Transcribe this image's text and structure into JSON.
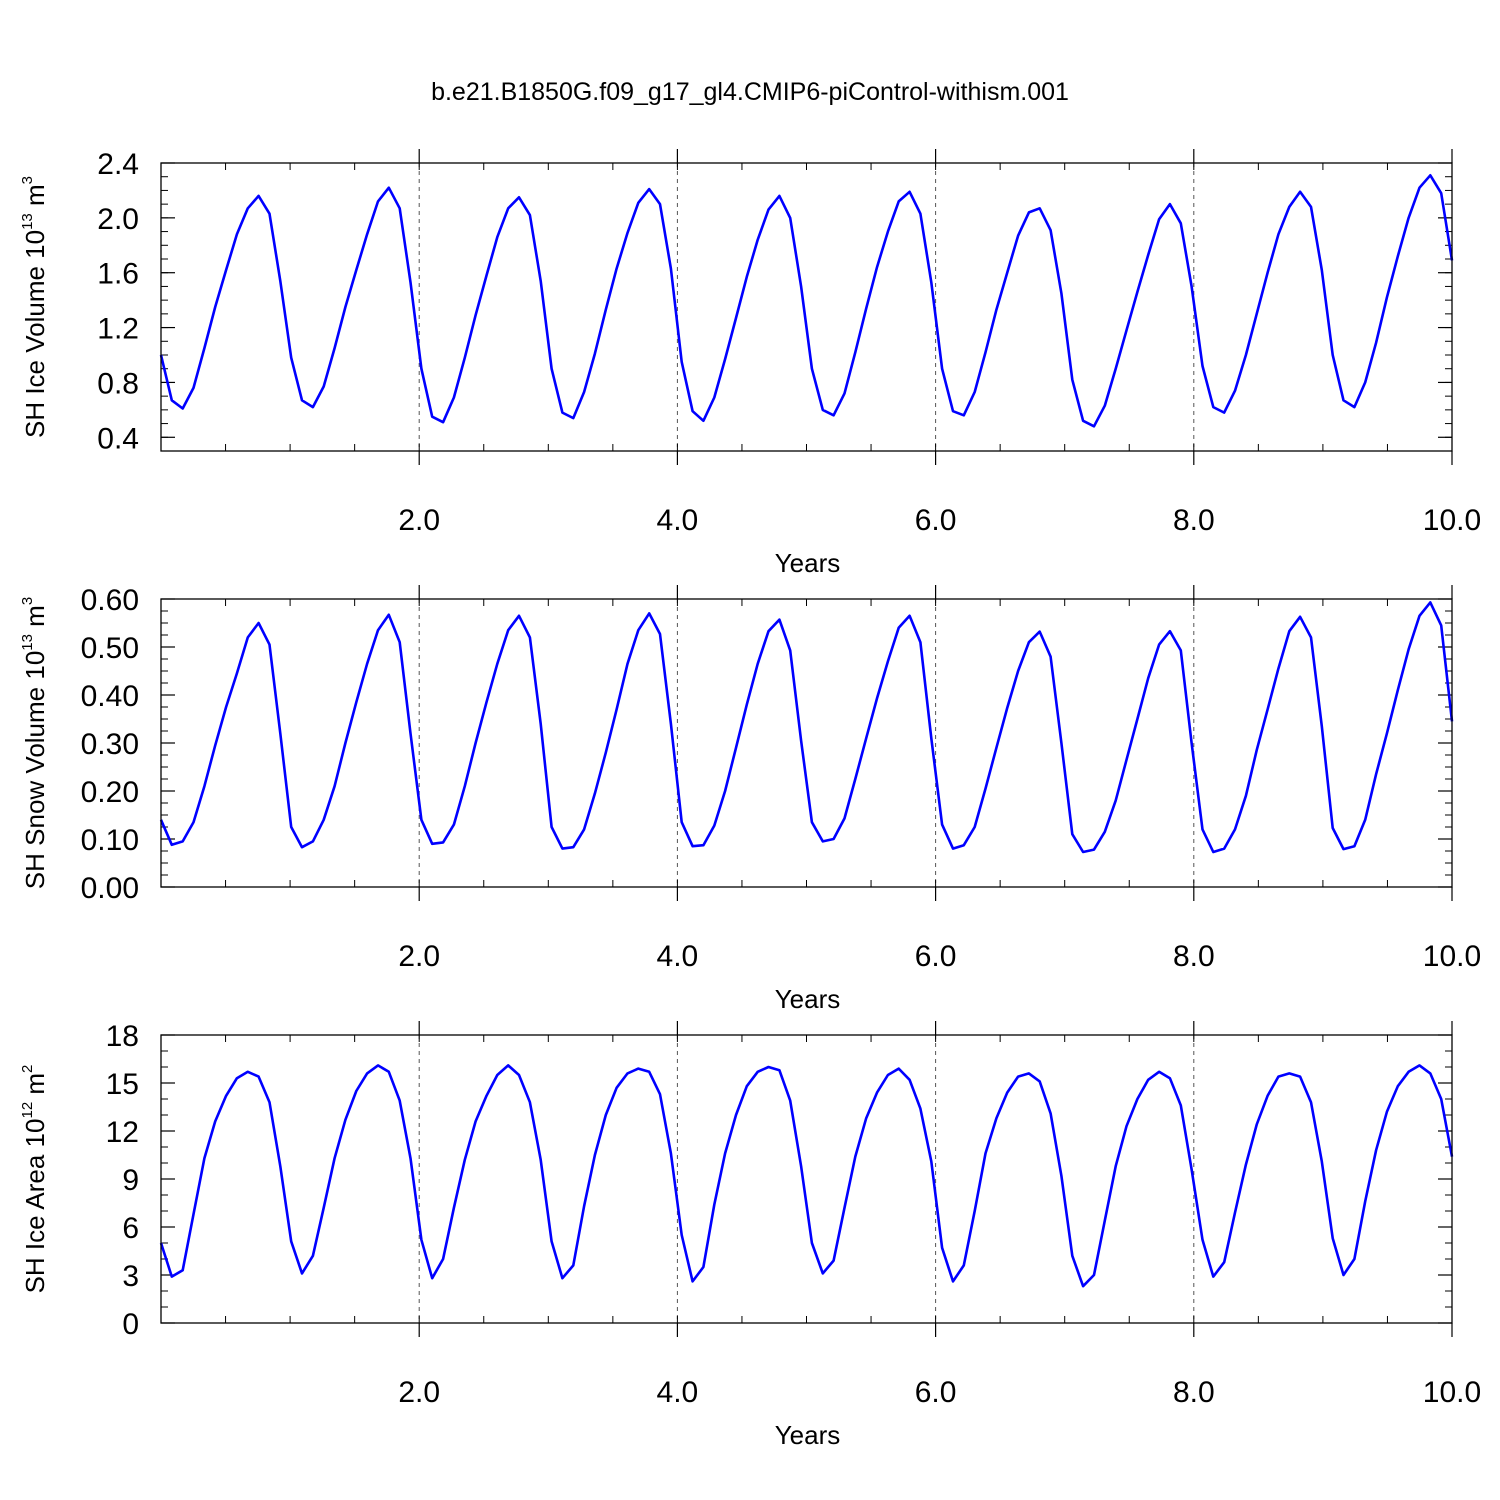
{
  "title": "b.e21.B1850G.f09_g17_gl4.CMIP6-piControl-withism.001",
  "colors": {
    "line": "#0000ff",
    "axis": "#000000",
    "grid": "#555555"
  },
  "chart_data": [
    {
      "type": "line",
      "ylabel": {
        "main": "SH Ice Volume 10",
        "exp": "13",
        "unit": " m",
        "unit_exp": "3"
      },
      "xlabel": "Years",
      "xlim": [
        0.0,
        10.0
      ],
      "ylim": [
        0.3,
        2.4
      ],
      "xticks": [
        2.0,
        4.0,
        6.0,
        8.0,
        10.0
      ],
      "xtick_labels": [
        "2.0",
        "4.0",
        "6.0",
        "8.0",
        "10.0"
      ],
      "yticks": [
        0.4,
        0.8,
        1.2,
        1.6,
        2.0,
        2.4
      ],
      "ytick_labels": [
        "0.4",
        "0.8",
        "1.2",
        "1.6",
        "2.0",
        "2.4"
      ],
      "y_minor_step": 0.1,
      "x_minor_step": 0.5,
      "vgrid": [
        2.0,
        4.0,
        6.0,
        8.0
      ],
      "series": [
        {
          "values": [
            1.0,
            0.67,
            0.61,
            0.76,
            1.05,
            1.35,
            1.62,
            1.88,
            2.07,
            2.16,
            2.03,
            1.54,
            0.98,
            0.67,
            0.62,
            0.77,
            1.05,
            1.35,
            1.62,
            1.88,
            2.12,
            2.22,
            2.07,
            1.53,
            0.9,
            0.55,
            0.51,
            0.69,
            0.98,
            1.29,
            1.58,
            1.86,
            2.07,
            2.15,
            2.02,
            1.54,
            0.9,
            0.58,
            0.54,
            0.73,
            1.01,
            1.33,
            1.63,
            1.89,
            2.11,
            2.21,
            2.1,
            1.63,
            0.95,
            0.59,
            0.52,
            0.69,
            0.97,
            1.27,
            1.57,
            1.84,
            2.06,
            2.16,
            2.0,
            1.5,
            0.9,
            0.6,
            0.56,
            0.72,
            1.02,
            1.34,
            1.64,
            1.9,
            2.12,
            2.19,
            2.03,
            1.53,
            0.9,
            0.59,
            0.56,
            0.73,
            1.02,
            1.33,
            1.6,
            1.87,
            2.04,
            2.07,
            1.91,
            1.45,
            0.82,
            0.52,
            0.48,
            0.63,
            0.9,
            1.18,
            1.46,
            1.73,
            1.99,
            2.1,
            1.96,
            1.5,
            0.92,
            0.62,
            0.58,
            0.74,
            1.0,
            1.3,
            1.6,
            1.88,
            2.08,
            2.19,
            2.08,
            1.62,
            1.0,
            0.67,
            0.62,
            0.8,
            1.09,
            1.42,
            1.72,
            2.0,
            2.22,
            2.31,
            2.18,
            1.69
          ]
        }
      ]
    },
    {
      "type": "line",
      "ylabel": {
        "main": "SH Snow Volume 10",
        "exp": "13",
        "unit": " m",
        "unit_exp": "3"
      },
      "xlabel": "Years",
      "xlim": [
        0.0,
        10.0
      ],
      "ylim": [
        0.0,
        0.6
      ],
      "xticks": [
        2.0,
        4.0,
        6.0,
        8.0,
        10.0
      ],
      "xtick_labels": [
        "2.0",
        "4.0",
        "6.0",
        "8.0",
        "10.0"
      ],
      "yticks": [
        0.0,
        0.1,
        0.2,
        0.3,
        0.4,
        0.5,
        0.6
      ],
      "ytick_labels": [
        "0.00",
        "0.10",
        "0.20",
        "0.30",
        "0.40",
        "0.50",
        "0.60"
      ],
      "y_minor_step": 0.025,
      "x_minor_step": 0.5,
      "vgrid": [
        2.0,
        4.0,
        6.0,
        8.0
      ],
      "series": [
        {
          "values": [
            0.14,
            0.088,
            0.095,
            0.135,
            0.21,
            0.295,
            0.375,
            0.445,
            0.52,
            0.55,
            0.505,
            0.32,
            0.125,
            0.083,
            0.095,
            0.14,
            0.21,
            0.3,
            0.385,
            0.465,
            0.535,
            0.567,
            0.51,
            0.32,
            0.14,
            0.09,
            0.093,
            0.13,
            0.21,
            0.3,
            0.385,
            0.465,
            0.535,
            0.565,
            0.52,
            0.34,
            0.125,
            0.08,
            0.083,
            0.12,
            0.195,
            0.28,
            0.37,
            0.465,
            0.535,
            0.57,
            0.527,
            0.34,
            0.135,
            0.085,
            0.087,
            0.128,
            0.2,
            0.29,
            0.38,
            0.465,
            0.533,
            0.557,
            0.493,
            0.305,
            0.135,
            0.095,
            0.1,
            0.143,
            0.225,
            0.31,
            0.393,
            0.47,
            0.54,
            0.565,
            0.51,
            0.31,
            0.13,
            0.08,
            0.087,
            0.125,
            0.205,
            0.29,
            0.373,
            0.45,
            0.51,
            0.532,
            0.48,
            0.3,
            0.11,
            0.073,
            0.078,
            0.115,
            0.18,
            0.265,
            0.35,
            0.435,
            0.505,
            0.533,
            0.493,
            0.3,
            0.12,
            0.073,
            0.08,
            0.12,
            0.19,
            0.285,
            0.37,
            0.455,
            0.533,
            0.563,
            0.52,
            0.335,
            0.123,
            0.079,
            0.085,
            0.14,
            0.235,
            0.32,
            0.41,
            0.495,
            0.565,
            0.593,
            0.545,
            0.345
          ]
        }
      ]
    },
    {
      "type": "line",
      "ylabel": {
        "main": "SH Ice Area 10",
        "exp": "12",
        "unit": " m",
        "unit_exp": "2"
      },
      "xlabel": "Years",
      "xlim": [
        0.0,
        10.0
      ],
      "ylim": [
        0,
        18
      ],
      "xticks": [
        2.0,
        4.0,
        6.0,
        8.0,
        10.0
      ],
      "xtick_labels": [
        "2.0",
        "4.0",
        "6.0",
        "8.0",
        "10.0"
      ],
      "yticks": [
        0,
        3,
        6,
        9,
        12,
        15,
        18
      ],
      "ytick_labels": [
        "0",
        "3",
        "6",
        "9",
        "12",
        "15",
        "18"
      ],
      "y_minor_step": 1,
      "x_minor_step": 0.5,
      "vgrid": [
        2.0,
        4.0,
        6.0,
        8.0
      ],
      "series": [
        {
          "values": [
            5.0,
            2.9,
            3.3,
            6.8,
            10.3,
            12.6,
            14.2,
            15.3,
            15.7,
            15.4,
            13.8,
            9.8,
            5.1,
            3.1,
            4.2,
            7.2,
            10.3,
            12.7,
            14.5,
            15.6,
            16.1,
            15.7,
            13.9,
            10.3,
            5.2,
            2.8,
            4.0,
            7.2,
            10.2,
            12.6,
            14.2,
            15.5,
            16.1,
            15.5,
            13.8,
            10.2,
            5.1,
            2.8,
            3.6,
            7.3,
            10.5,
            13.0,
            14.7,
            15.6,
            15.9,
            15.7,
            14.3,
            10.6,
            5.5,
            2.6,
            3.5,
            7.4,
            10.6,
            13.0,
            14.8,
            15.7,
            16.0,
            15.8,
            13.9,
            9.8,
            5.0,
            3.1,
            3.9,
            7.2,
            10.4,
            12.8,
            14.4,
            15.5,
            15.9,
            15.2,
            13.4,
            10.1,
            4.7,
            2.6,
            3.6,
            7.0,
            10.6,
            12.8,
            14.4,
            15.4,
            15.6,
            15.1,
            13.1,
            9.2,
            4.2,
            2.3,
            3.0,
            6.4,
            9.8,
            12.3,
            14.0,
            15.2,
            15.7,
            15.3,
            13.6,
            9.6,
            5.2,
            2.9,
            3.8,
            6.9,
            9.9,
            12.4,
            14.2,
            15.4,
            15.6,
            15.4,
            13.8,
            10.1,
            5.3,
            3.0,
            4.0,
            7.6,
            10.8,
            13.2,
            14.8,
            15.7,
            16.1,
            15.6,
            14.0,
            10.4
          ]
        }
      ]
    }
  ]
}
